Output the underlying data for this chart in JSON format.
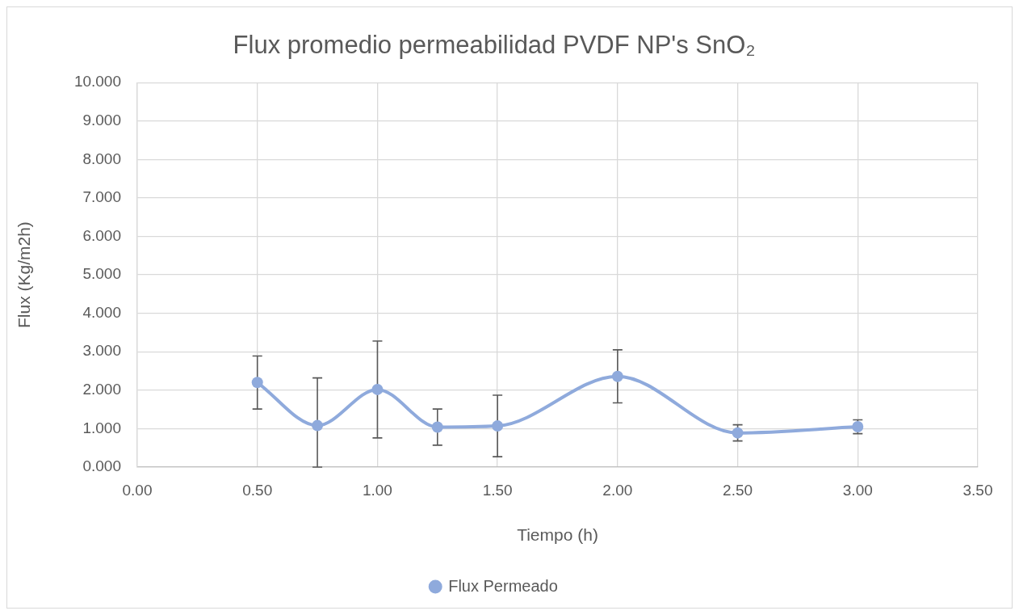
{
  "chart_data": {
    "type": "line",
    "title": "Flux promedio permeabilidad PVDF NP's SnO₂",
    "xlabel": "Tiempo (h)",
    "ylabel": "Flux (Kg/m2h)",
    "x": [
      0.5,
      0.75,
      1,
      1.25,
      1.5,
      2,
      2.5,
      3
    ],
    "series": [
      {
        "name": "Flux Permeado",
        "color": "#8faadc",
        "values": [
          2.2,
          1.08,
          2.02,
          1.04,
          1.07,
          2.36,
          0.89,
          1.05
        ],
        "errors": [
          0.69,
          [
            0,
            2.32
          ],
          1.26,
          0.47,
          0.8,
          0.69,
          0.21,
          0.18
        ]
      }
    ],
    "xlim": [
      0,
      3.5
    ],
    "xticks": [
      {
        "value": 0,
        "label": "0.00"
      },
      {
        "value": 0.5,
        "label": "0.50"
      },
      {
        "value": 1,
        "label": "1.00"
      },
      {
        "value": 1.5,
        "label": "1.50"
      },
      {
        "value": 2,
        "label": "2.00"
      },
      {
        "value": 2.5,
        "label": "2.50"
      },
      {
        "value": 3,
        "label": "3.00"
      },
      {
        "value": 3.5,
        "label": "3.50"
      }
    ],
    "ylim": [
      0,
      10
    ],
    "yticks": [
      {
        "value": 0,
        "label": "0.000"
      },
      {
        "value": 1,
        "label": "1.000"
      },
      {
        "value": 2,
        "label": "2.000"
      },
      {
        "value": 3,
        "label": "3.000"
      },
      {
        "value": 4,
        "label": "4.000"
      },
      {
        "value": 5,
        "label": "5.000"
      },
      {
        "value": 6,
        "label": "6.000"
      },
      {
        "value": 7,
        "label": "7.000"
      },
      {
        "value": 8,
        "label": "8.000"
      },
      {
        "value": 9,
        "label": "9.000"
      },
      {
        "value": 10,
        "label": "10.000"
      }
    ],
    "grid": true,
    "legend": "bottom",
    "marker": "circle"
  }
}
